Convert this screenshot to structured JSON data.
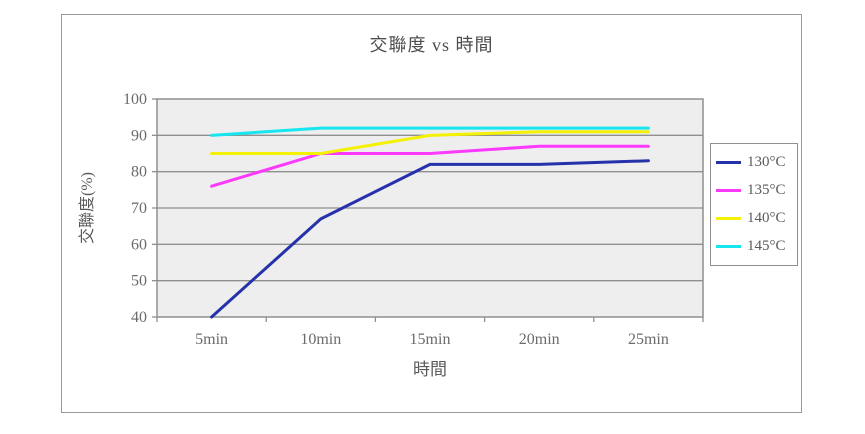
{
  "chart_data": {
    "type": "line",
    "title": "交聯度 vs 時間",
    "xlabel": "時間",
    "ylabel": "交聯度(%)",
    "categories": [
      "5min",
      "10min",
      "15min",
      "20min",
      "25min"
    ],
    "yticks": [
      100,
      90,
      80,
      70,
      60,
      50,
      40
    ],
    "ylim": [
      40,
      100
    ],
    "ytick_step": 10,
    "grid": "horizontal",
    "legend_position": "right",
    "plot_bg_color": "#eeeeee",
    "gridline_color": "#8f8f8f",
    "series": [
      {
        "name": "130°C",
        "color": "#2632aa",
        "values": [
          40,
          67,
          82,
          82,
          83
        ]
      },
      {
        "name": "135°C",
        "color": "#fd39fd",
        "values": [
          76,
          85,
          85,
          87,
          87
        ]
      },
      {
        "name": "140°C",
        "color": "#f4f104",
        "values": [
          85,
          85,
          90,
          91,
          91
        ]
      },
      {
        "name": "145°C",
        "color": "#17e6ee",
        "values": [
          90,
          92,
          92,
          92,
          92
        ]
      }
    ]
  }
}
